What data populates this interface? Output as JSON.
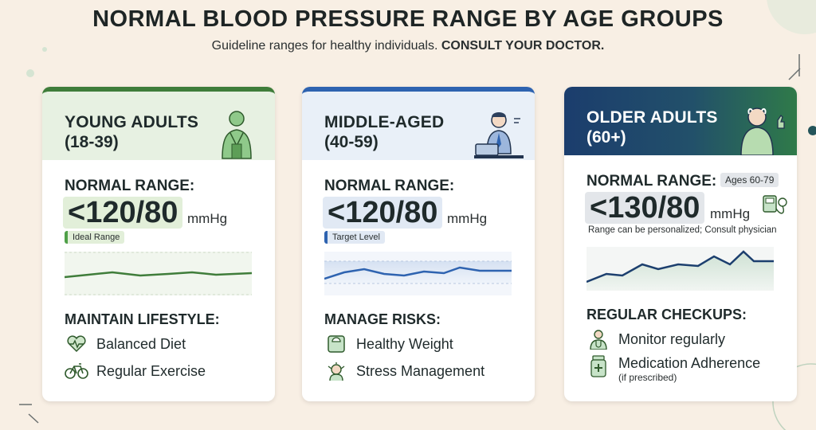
{
  "header": {
    "title": "NORMAL BLOOD PRESSURE RANGE BY AGE GROUPS",
    "subtitle_plain": "Guideline ranges for healthy individuals.",
    "subtitle_bold": "CONSULT YOUR DOCTOR."
  },
  "cards": [
    {
      "title": "YOUNG ADULTS",
      "age": "(18-39)",
      "range_label": "NORMAL RANGE:",
      "range_value": "<120/80",
      "unit": "mmHg",
      "tag": "Ideal Range",
      "section": "MAINTAIN LIFESTYLE:",
      "items": [
        {
          "icon": "heart-pulse-icon",
          "label": "Balanced Diet"
        },
        {
          "icon": "bicycle-icon",
          "label": "Regular Exercise"
        }
      ],
      "colors": {
        "accent": "#3f7d3a",
        "head_bg": "#e7f1e2",
        "value_bg": "#e2efd9",
        "tag_bg": "#e2efd9",
        "tag_bar": "#4fa048"
      }
    },
    {
      "title": "MIDDLE-AGED",
      "age": "(40-59)",
      "range_label": "NORMAL RANGE:",
      "range_value": "<120/80",
      "unit": "mmHg",
      "tag": "Target Level",
      "section": "MANAGE RISKS:",
      "items": [
        {
          "icon": "scale-icon",
          "label": "Healthy Weight"
        },
        {
          "icon": "stress-icon",
          "label": "Stress Management"
        }
      ],
      "colors": {
        "accent": "#2e63b0",
        "head_bg": "#e9f0f8",
        "value_bg": "#e1e9f4",
        "tag_bg": "#e1e9f4",
        "tag_bar": "#2e63b0"
      }
    },
    {
      "title": "OLDER ADULTS",
      "age": "(60+)",
      "range_label": "NORMAL RANGE:",
      "age_badge": "Ages 60-79",
      "range_value": "<130/80",
      "unit": "mmHg",
      "note": "Range can be personalized; Consult physician",
      "section": "REGULAR CHECKUPS:",
      "items": [
        {
          "icon": "doctor-icon",
          "label": "Monitor regularly"
        },
        {
          "icon": "medication-icon",
          "label": "Medication Adherence",
          "sub": "(if prescribed)"
        }
      ],
      "colors": {
        "accent": "#1c3f6e",
        "head_bg_from": "#1b3d6d",
        "head_bg_to": "#2f7a49",
        "value_bg": "#e3e6ea",
        "badge_bg": "#e3e6ea"
      }
    }
  ]
}
